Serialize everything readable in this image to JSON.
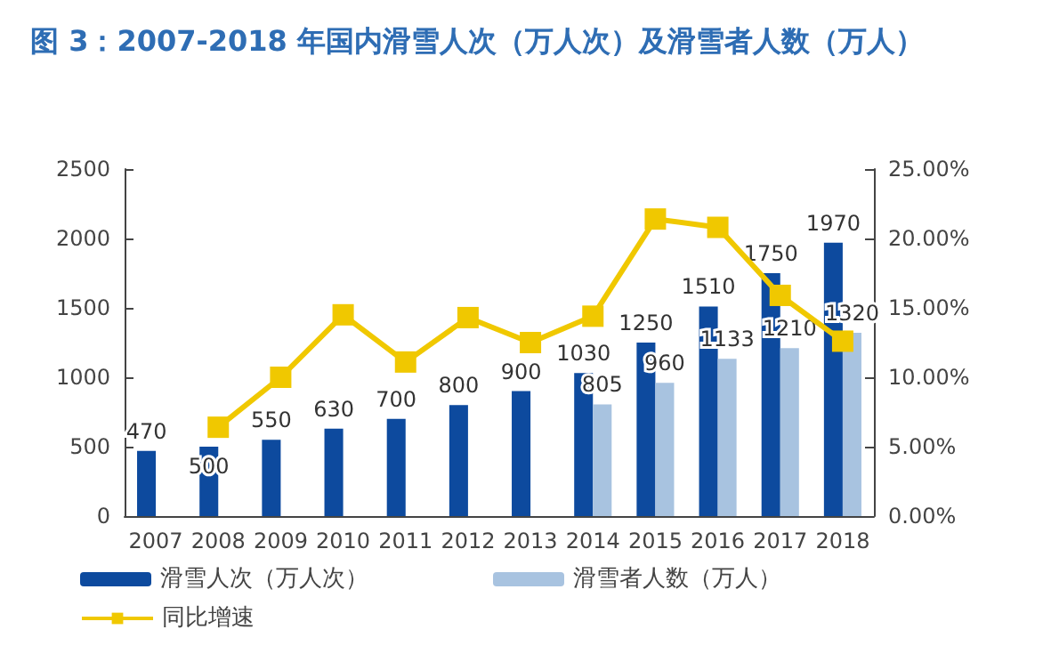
{
  "chart_data": {
    "type": "bar",
    "title": "图 3：2007-2018 年国内滑雪人次（万人次）及滑雪者人数（万人）",
    "categories": [
      "2007",
      "2008",
      "2009",
      "2010",
      "2011",
      "2012",
      "2013",
      "2014",
      "2015",
      "2016",
      "2017",
      "2018"
    ],
    "series": [
      {
        "name": "滑雪人次（万人次）",
        "color": "#0d4a9e",
        "values": [
          470,
          500,
          550,
          630,
          700,
          800,
          900,
          1030,
          1250,
          1510,
          1750,
          1970
        ],
        "value_labels": [
          "470",
          "500",
          "550",
          "630",
          "700",
          "800",
          "900",
          "1030",
          "1250",
          "1510",
          "1750",
          "1970"
        ]
      },
      {
        "name": "滑雪者人数（万人）",
        "color": "#a8c3e0",
        "values": [
          null,
          null,
          null,
          null,
          null,
          null,
          null,
          805,
          960,
          1133,
          1210,
          1320
        ],
        "value_labels": [
          null,
          null,
          null,
          null,
          null,
          null,
          null,
          "805",
          "960",
          "1133",
          "1210",
          "1320"
        ]
      },
      {
        "name": "同比增速",
        "type": "line",
        "axis": "y2",
        "color": "#f0c800",
        "values": [
          null,
          6.4,
          10.0,
          14.5,
          11.1,
          14.3,
          12.5,
          14.4,
          21.4,
          20.8,
          15.9,
          12.6
        ]
      }
    ],
    "ylim": [
      0,
      2500
    ],
    "yticks": [
      0,
      500,
      1000,
      1500,
      2000,
      2500
    ],
    "y2lim": [
      0,
      25
    ],
    "y2ticks": [
      {
        "value": 0,
        "label": "0.00%"
      },
      {
        "value": 5,
        "label": "5.00%"
      },
      {
        "value": 10,
        "label": "10.00%"
      },
      {
        "value": 15,
        "label": "15.00%"
      },
      {
        "value": 20,
        "label": "20.00%"
      },
      {
        "value": 25,
        "label": "25.00%"
      }
    ],
    "marker": "square",
    "grid": false,
    "legend": "bottom"
  }
}
